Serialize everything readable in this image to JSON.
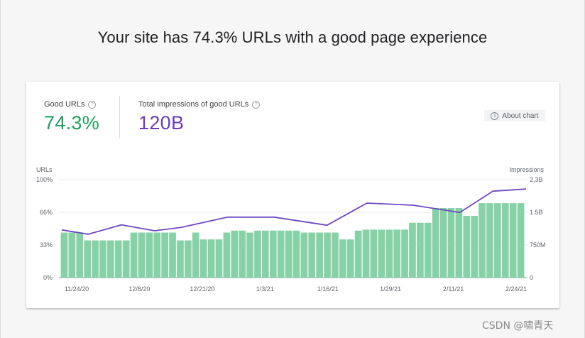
{
  "page": {
    "title": "Your site has 74.3% URLs with a good page experience",
    "watermark": "CSDN @啸青天"
  },
  "metrics": {
    "good_urls": {
      "label": "Good URLs",
      "value": "74.3%",
      "color": "#1e9e5a"
    },
    "impressions": {
      "label": "Total impressions of good URLs",
      "value": "120B",
      "color": "#6a3fb5"
    }
  },
  "about_chart": {
    "label": "About chart",
    "icon": "info-icon"
  },
  "chart_data": {
    "type": "bar",
    "title": "",
    "bar_color": "#86d1a5",
    "line_color": "#7048c0",
    "y_left": {
      "title": "URLs",
      "ticks": [
        "0%",
        "33%",
        "66%",
        "100%"
      ],
      "range": [
        0,
        100
      ]
    },
    "y_right": {
      "title": "Impressions",
      "ticks": [
        "0",
        "750M",
        "1.5B",
        "2.3B"
      ],
      "range": [
        0,
        2.3
      ]
    },
    "x_ticks": [
      "11/24/20",
      "12/8/20",
      "12/21/20",
      "1/3/21",
      "1/16/21",
      "1/29/21",
      "2/11/21",
      "2/24/21"
    ],
    "good_urls_pct": [
      46,
      46,
      46,
      38,
      38,
      38,
      38,
      38,
      38,
      46,
      46,
      46,
      46,
      46,
      46,
      38,
      38,
      46,
      39,
      39,
      39,
      46,
      48,
      48,
      46,
      48,
      48,
      48,
      48,
      48,
      48,
      46,
      46,
      46,
      46,
      46,
      39,
      39,
      48,
      49,
      49,
      49,
      49,
      49,
      49,
      56,
      56,
      56,
      71,
      71,
      71,
      71,
      63,
      63,
      76,
      76,
      76,
      76,
      76,
      76
    ],
    "impressions_b": [
      [
        0,
        1.12
      ],
      [
        4,
        1.02
      ],
      [
        9,
        1.24
      ],
      [
        14,
        1.1
      ],
      [
        18,
        1.18
      ],
      [
        25,
        1.42
      ],
      [
        32,
        1.42
      ],
      [
        40,
        1.23
      ],
      [
        46,
        1.75
      ],
      [
        53,
        1.7
      ],
      [
        60,
        1.53
      ],
      [
        65,
        2.03
      ],
      [
        70,
        2.08
      ]
    ],
    "line_index_max": 70
  }
}
